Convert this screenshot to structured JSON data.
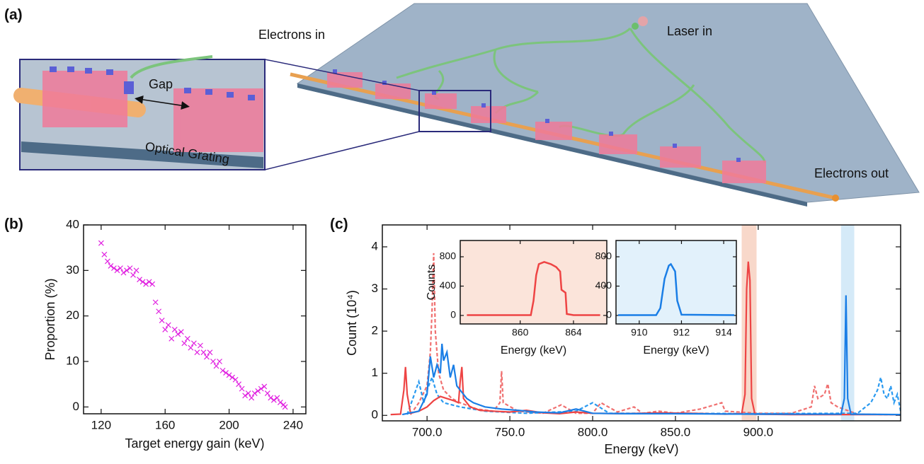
{
  "illustration": {
    "panel_label": "(a)",
    "electrons_in": "Electrons in",
    "laser_in": "Laser in",
    "gap": "Gap",
    "optical_grating": "Optical Grating",
    "electrons_out": "Electrons out"
  },
  "chart_data": [
    {
      "type": "scatter",
      "panel_label": "(b)",
      "xlabel": "Target energy gain (keV)",
      "ylabel": "Proportion (%)",
      "color": "#e020e0",
      "marker": "x",
      "x": [
        120,
        122,
        124,
        126,
        128,
        130,
        132,
        134,
        136,
        138,
        140,
        142,
        144,
        146,
        148,
        150,
        152,
        154,
        156,
        158,
        160,
        162,
        164,
        166,
        168,
        170,
        172,
        174,
        176,
        178,
        180,
        182,
        184,
        186,
        188,
        190,
        192,
        194,
        196,
        198,
        200,
        202,
        204,
        206,
        208,
        210,
        212,
        214,
        216,
        218,
        220,
        222,
        224,
        226,
        228,
        230,
        232,
        234,
        235
      ],
      "values": [
        36,
        33.5,
        32,
        31,
        30.5,
        30,
        30.5,
        29.5,
        30,
        30.5,
        29,
        30,
        28,
        27.5,
        27,
        27.5,
        27,
        23,
        21,
        19,
        17,
        18,
        15,
        17,
        16,
        16.5,
        14,
        15,
        13,
        14,
        12,
        13.5,
        12,
        11,
        12,
        10,
        9,
        10,
        8,
        7.5,
        7,
        6.5,
        6,
        5,
        4,
        2.5,
        3,
        2,
        3,
        3.5,
        4,
        4.5,
        3,
        2,
        1.5,
        2,
        1,
        0.5,
        0
      ],
      "xlim": [
        109,
        248
      ],
      "ylim": [
        -1.5,
        40
      ],
      "xticks": [
        120,
        160,
        200,
        240
      ],
      "yticks": [
        0,
        10,
        20,
        30,
        40
      ]
    },
    {
      "type": "line",
      "panel_label": "(c)",
      "xlabel": "Energy (keV)",
      "ylabel": "Count (10⁴)",
      "xlim": [
        673,
        986
      ],
      "ylim": [
        -0.13,
        4.52
      ],
      "xticks": [
        {
          "value": 700,
          "label": "700.0"
        },
        {
          "value": 750,
          "label": "750.0"
        },
        {
          "value": 800,
          "label": "800.0"
        },
        {
          "value": 850,
          "label": "850.0"
        },
        {
          "value": 900,
          "label": "900.0"
        }
      ],
      "yticks": [
        0,
        1,
        2,
        3,
        4
      ],
      "spans": [
        {
          "range": [
            890,
            899
          ],
          "color": "#f8d8ca"
        },
        {
          "range": [
            950,
            958
          ],
          "color": "#d5eaf8"
        }
      ],
      "series": [
        {
          "color": "#f07070",
          "dash": true,
          "x": [
            690,
            695,
            700,
            702,
            703,
            704,
            705,
            707,
            710,
            715,
            720,
            730,
            740,
            744,
            745,
            746,
            755,
            770,
            781,
            790,
            800,
            805,
            815,
            825,
            830,
            840,
            850,
            865,
            878,
            880,
            900,
            920,
            932,
            934,
            936,
            940,
            942,
            944,
            948,
            960,
            975,
            986
          ],
          "values": [
            0.02,
            0.3,
            0.7,
            1.5,
            2.5,
            3.85,
            2.0,
            1.0,
            0.6,
            0.4,
            0.3,
            0.15,
            0.1,
            0.3,
            1.05,
            0.3,
            0.1,
            0.05,
            0.25,
            0.05,
            0.05,
            0.3,
            0.08,
            0.2,
            0.05,
            0.1,
            0.05,
            0.15,
            0.3,
            0.1,
            0.05,
            0.05,
            0.2,
            0.7,
            0.4,
            0.5,
            0.75,
            0.3,
            0.2,
            0.03,
            0.02,
            0.02
          ]
        },
        {
          "color": "#2a9af0",
          "dash": true,
          "x": [
            688,
            695,
            698,
            700,
            703,
            706,
            710,
            720,
            735,
            760,
            790,
            800,
            810,
            850,
            900,
            960,
            968,
            972,
            974,
            976,
            978,
            980,
            982,
            984,
            986
          ],
          "values": [
            0.02,
            0.8,
            0.3,
            0.6,
            0.9,
            0.5,
            0.3,
            0.2,
            0.1,
            0.05,
            0.1,
            0.3,
            0.05,
            0.05,
            0.04,
            0.05,
            0.3,
            0.6,
            0.9,
            0.5,
            0.4,
            0.7,
            0.3,
            0.5,
            0.1
          ]
        },
        {
          "color": "#ee4444",
          "dash": false,
          "x": [
            678,
            684,
            686,
            687,
            688,
            690,
            695,
            700,
            704,
            708,
            712,
            716,
            719,
            720,
            721,
            722,
            726,
            732,
            740,
            750,
            760,
            770,
            780,
            790,
            800,
            820,
            840,
            860,
            880,
            890,
            892,
            893,
            894,
            895,
            896,
            898,
            920,
            950,
            986
          ],
          "values": [
            0.02,
            0.03,
            0.6,
            1.15,
            0.5,
            0.05,
            0.1,
            0.2,
            0.35,
            0.45,
            0.4,
            0.35,
            0.3,
            0.8,
            1.15,
            0.4,
            0.2,
            0.12,
            0.1,
            0.08,
            0.12,
            0.06,
            0.04,
            0.08,
            0.05,
            0.04,
            0.06,
            0.05,
            0.03,
            0.04,
            0.5,
            3.0,
            3.65,
            3.2,
            0.4,
            0.03,
            0.02,
            0.02,
            0.02
          ]
        },
        {
          "color": "#1a7ee6",
          "dash": false,
          "x": [
            685,
            695,
            700,
            702,
            704,
            706,
            708,
            709,
            710,
            712,
            714,
            716,
            718,
            720,
            724,
            728,
            735,
            745,
            755,
            765,
            780,
            790,
            800,
            820,
            850,
            900,
            950,
            952,
            953,
            954,
            956,
            986
          ],
          "values": [
            0.02,
            0.1,
            0.5,
            1.4,
            0.9,
            1.2,
            1.0,
            1.7,
            1.3,
            1.5,
            0.9,
            1.2,
            0.7,
            0.6,
            0.4,
            0.3,
            0.2,
            0.15,
            0.12,
            0.08,
            0.06,
            0.15,
            0.05,
            0.04,
            0.04,
            0.03,
            0.03,
            0.4,
            2.85,
            0.4,
            0.03,
            0.02
          ]
        }
      ]
    },
    {
      "type": "line",
      "xlabel": "Energy (keV)",
      "ylabel": "Counts",
      "background": "#fbe4da",
      "xlim": [
        855.5,
        866.5
      ],
      "ylim": [
        -116,
        1022
      ],
      "xticks": [
        860,
        864
      ],
      "yticks": [
        0,
        400,
        800
      ],
      "series": [
        {
          "color": "#ee4444",
          "dash": false,
          "x": [
            856,
            860.8,
            861.0,
            861.2,
            861.4,
            861.8,
            862.3,
            862.7,
            863.0,
            863.1,
            863.4,
            863.5,
            864,
            866
          ],
          "values": [
            5,
            5,
            200,
            550,
            700,
            730,
            700,
            660,
            600,
            350,
            310,
            20,
            5,
            5
          ]
        }
      ]
    },
    {
      "type": "line",
      "xlabel": "Energy (keV)",
      "background": "#e2f1fb",
      "xlim": [
        908.9,
        914.6
      ],
      "ylim": [
        -116,
        1022
      ],
      "xticks": [
        910,
        912,
        914
      ],
      "yticks": [
        0,
        400,
        800
      ],
      "series": [
        {
          "color": "#1a7ee6",
          "dash": false,
          "x": [
            909,
            910.8,
            911.0,
            911.2,
            911.4,
            911.5,
            911.7,
            911.8,
            912.0,
            914.5
          ],
          "values": [
            5,
            5,
            100,
            500,
            680,
            700,
            600,
            200,
            10,
            5
          ]
        }
      ]
    }
  ]
}
